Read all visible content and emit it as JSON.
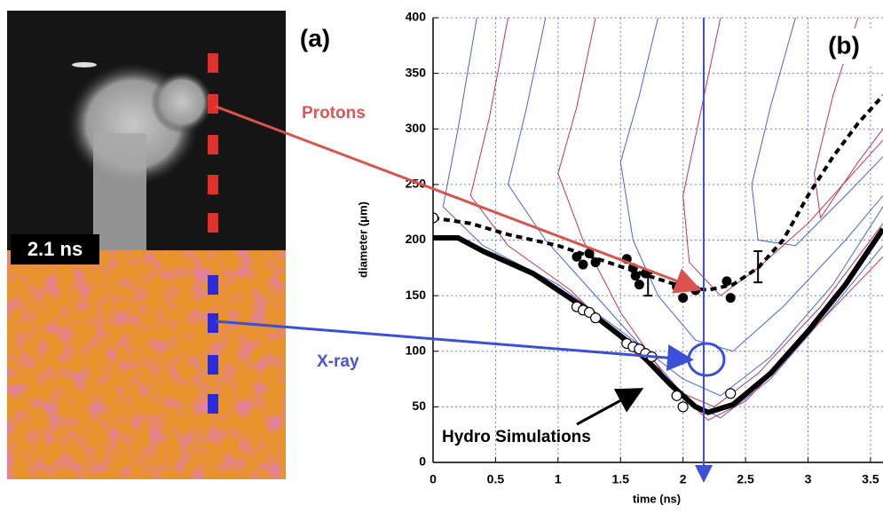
{
  "figure": {
    "panel_a_label": "(a)",
    "time_label": "2.1 ns",
    "protons_label": "Protons",
    "xray_label": "X-ray"
  },
  "chart_data": {
    "type": "line",
    "x_label": "time (ns)",
    "y_label": "diameter (μm)",
    "panel_label": "(b)",
    "annotation": "Hydro Simulations",
    "xlim": [
      0,
      3.6
    ],
    "ylim": [
      0,
      400
    ],
    "xticks": [
      0,
      0.5,
      1,
      1.5,
      2,
      2.5,
      3,
      3.5
    ],
    "yticks": [
      0,
      50,
      100,
      150,
      200,
      250,
      300,
      350,
      400
    ],
    "grid": true,
    "series": [
      {
        "style": "thin",
        "color": "#4a63d6",
        "x": [
          0.35,
          0.2,
          0.08,
          0.4,
          1.0,
          1.6,
          2.0,
          2.3,
          2.7,
          3.2,
          3.6
        ],
        "values": [
          400,
          300,
          230,
          195,
          160,
          110,
          75,
          60,
          95,
          160,
          230
        ]
      },
      {
        "style": "thin",
        "color": "#c8344e",
        "x": [
          0.6,
          0.45,
          0.3,
          0.6,
          1.1,
          1.6,
          2.0,
          2.25,
          2.6,
          3.1,
          3.6
        ],
        "values": [
          400,
          310,
          240,
          195,
          155,
          100,
          62,
          50,
          80,
          140,
          215
        ]
      },
      {
        "style": "thin",
        "color": "#4a63d6",
        "x": [
          0.9,
          0.75,
          0.6,
          0.9,
          1.3,
          1.7,
          2.05,
          2.3,
          2.7,
          3.2,
          3.6
        ],
        "values": [
          400,
          320,
          250,
          200,
          150,
          100,
          55,
          40,
          75,
          140,
          195
        ]
      },
      {
        "style": "thin",
        "color": "#c8344e",
        "x": [
          1.3,
          1.15,
          1.0,
          1.2,
          1.5,
          1.9,
          2.2,
          2.5,
          3.0,
          3.6
        ],
        "values": [
          400,
          320,
          260,
          200,
          135,
          70,
          38,
          55,
          115,
          185
        ]
      },
      {
        "style": "thin",
        "color": "#4a63d6",
        "x": [
          1.8,
          1.65,
          1.5,
          1.6,
          1.8,
          2.1,
          2.4,
          2.8,
          3.3,
          3.6
        ],
        "values": [
          400,
          330,
          270,
          200,
          150,
          110,
          100,
          140,
          200,
          240
        ]
      },
      {
        "style": "thin",
        "color": "#c8344e",
        "x": [
          2.3,
          2.15,
          2.0,
          2.05,
          2.3,
          2.6,
          3.0,
          3.4,
          3.6
        ],
        "values": [
          400,
          320,
          240,
          180,
          150,
          175,
          215,
          265,
          290
        ]
      },
      {
        "style": "thin",
        "color": "#4a63d6",
        "x": [
          2.9,
          2.7,
          2.55,
          2.6,
          2.9,
          3.3,
          3.6
        ],
        "values": [
          400,
          320,
          250,
          200,
          195,
          240,
          275
        ]
      },
      {
        "style": "thin",
        "color": "#c8344e",
        "x": [
          3.4,
          3.2,
          3.05,
          3.1,
          3.4,
          3.6
        ],
        "values": [
          400,
          330,
          260,
          220,
          270,
          300
        ]
      },
      {
        "style": "thick",
        "color": "#000000",
        "x": [
          0,
          0.2,
          0.4,
          0.8,
          1.2,
          1.6,
          1.9,
          2.1,
          2.2,
          2.4,
          2.7,
          3.0,
          3.3,
          3.6
        ],
        "values": [
          202,
          202,
          190,
          170,
          140,
          105,
          70,
          50,
          45,
          52,
          80,
          118,
          160,
          210
        ]
      },
      {
        "style": "dashed",
        "color": "#000000",
        "x": [
          0,
          0.3,
          0.6,
          1.0,
          1.4,
          1.8,
          2.0,
          2.2,
          2.4,
          2.6,
          2.8,
          3.0,
          3.2,
          3.4,
          3.6
        ],
        "values": [
          220,
          215,
          205,
          195,
          180,
          165,
          158,
          155,
          160,
          175,
          200,
          240,
          275,
          305,
          330
        ]
      },
      {
        "style": "filled",
        "color": "#000000",
        "x": [
          1.15,
          1.2,
          1.25,
          1.3,
          1.55,
          1.6,
          1.62,
          1.65,
          1.7,
          1.95,
          2.0,
          2.1,
          2.35,
          2.38
        ],
        "values": [
          185,
          178,
          188,
          180,
          183,
          175,
          168,
          160,
          170,
          158,
          148,
          155,
          163,
          148
        ]
      },
      {
        "style": "open",
        "color": "#000000",
        "x": [
          0,
          1.15,
          1.2,
          1.25,
          1.3,
          1.55,
          1.6,
          1.65,
          1.7,
          1.75,
          1.95,
          2.0,
          2.38
        ],
        "values": [
          220,
          140,
          137,
          135,
          130,
          107,
          104,
          102,
          98,
          95,
          60,
          50,
          62
        ]
      },
      {
        "style": "errorbar",
        "color": "#000000",
        "x": [
          1.72,
          2.6
        ],
        "values": [
          160,
          176
        ],
        "errors": [
          10,
          14
        ]
      }
    ]
  }
}
